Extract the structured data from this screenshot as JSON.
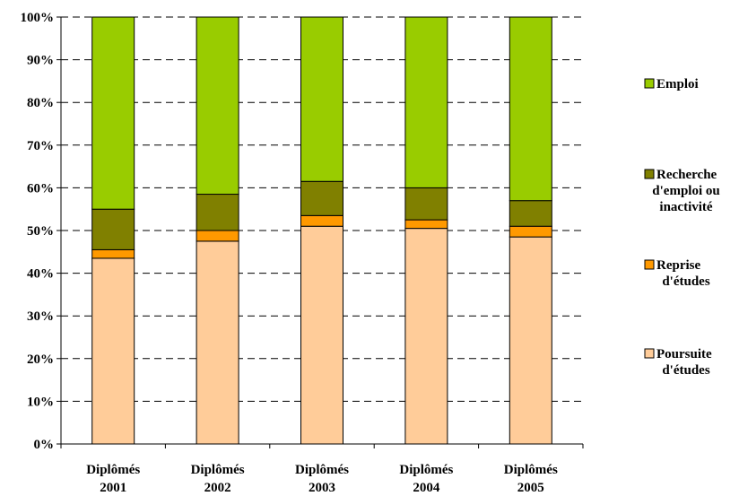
{
  "chart_data": {
    "type": "bar",
    "stacked": true,
    "percent": true,
    "categories": [
      [
        "Diplômés",
        "2001"
      ],
      [
        "Diplômés",
        "2002"
      ],
      [
        "Diplômés",
        "2003"
      ],
      [
        "Diplômés",
        "2004"
      ],
      [
        "Diplômés",
        "2005"
      ]
    ],
    "y_ticks": [
      "0%",
      "10%",
      "20%",
      "30%",
      "40%",
      "50%",
      "60%",
      "70%",
      "80%",
      "90%",
      "100%"
    ],
    "ylim": [
      0,
      100
    ],
    "grid": true,
    "legend_position": "right",
    "series": [
      {
        "name": "Poursuite d'études",
        "legend_lines": [
          "Poursuite",
          "d'études"
        ],
        "color": "#FFCC99",
        "values": [
          43.5,
          47.5,
          51.0,
          50.5,
          48.5
        ]
      },
      {
        "name": "Reprise d'études",
        "legend_lines": [
          "Reprise",
          "d'études"
        ],
        "color": "#FF9900",
        "values": [
          2.0,
          2.5,
          2.5,
          2.0,
          2.5
        ]
      },
      {
        "name": "Recherche d'emploi ou inactivité",
        "legend_lines": [
          "Recherche",
          "d'emploi ou",
          "inactivité"
        ],
        "color": "#808000",
        "values": [
          9.5,
          8.5,
          8.0,
          7.5,
          6.0
        ]
      },
      {
        "name": "Emploi",
        "legend_lines": [
          "Emploi"
        ],
        "color": "#99CC00",
        "values": [
          45.0,
          41.5,
          38.5,
          40.0,
          43.0
        ]
      }
    ]
  }
}
